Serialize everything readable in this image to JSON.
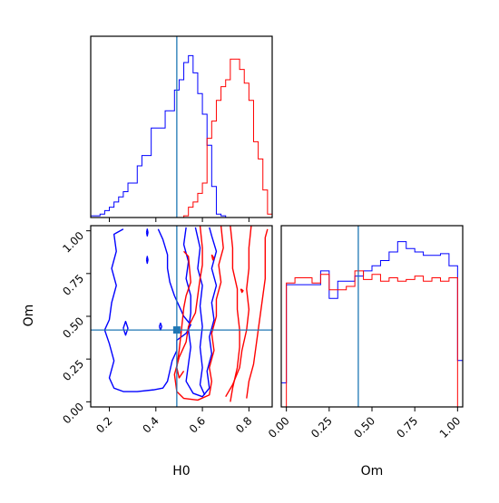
{
  "chart_data": {
    "type": "corner",
    "colors": {
      "series_a": "#0000ff",
      "series_b": "#ff0000",
      "truth": "#1f77b4",
      "frame": "#000000"
    },
    "truth": {
      "H0": 0.49,
      "Om": 0.42
    },
    "axes": {
      "H0": {
        "label": "H0",
        "lim": [
          0.12,
          0.9
        ],
        "ticks": [
          "0.2",
          "0.4",
          "0.6",
          "0.8"
        ],
        "tick_values": [
          0.2,
          0.4,
          0.6,
          0.8
        ]
      },
      "Om": {
        "label": "Om",
        "lim": [
          -0.03,
          1.03
        ],
        "ticks": [
          "0.00",
          "0.25",
          "0.50",
          "0.75",
          "1.00"
        ],
        "tick_values": [
          0.0,
          0.25,
          0.5,
          0.75,
          1.0
        ]
      }
    },
    "hist_H0": {
      "bin_edges": [
        0.12,
        0.14,
        0.16,
        0.18,
        0.2,
        0.22,
        0.24,
        0.26,
        0.28,
        0.3,
        0.32,
        0.34,
        0.36,
        0.38,
        0.4,
        0.42,
        0.44,
        0.46,
        0.48,
        0.5,
        0.52,
        0.54,
        0.56,
        0.58,
        0.6,
        0.62,
        0.64,
        0.66,
        0.68,
        0.7,
        0.72,
        0.74,
        0.76,
        0.78,
        0.8,
        0.82,
        0.84,
        0.86,
        0.88,
        0.9
      ],
      "series_a": [
        0.01,
        0.01,
        0.02,
        0.04,
        0.06,
        0.09,
        0.12,
        0.15,
        0.2,
        0.2,
        0.3,
        0.36,
        0.36,
        0.52,
        0.52,
        0.52,
        0.62,
        0.62,
        0.74,
        0.8,
        0.9,
        0.94,
        0.84,
        0.72,
        0.6,
        0.42,
        0.18,
        0.02,
        0.01,
        0.0,
        0.0,
        0.0,
        0.0,
        0.0,
        0.0,
        0.0,
        0.0,
        0.0,
        0.0
      ],
      "series_b": [
        0.0,
        0.0,
        0.0,
        0.0,
        0.0,
        0.0,
        0.0,
        0.0,
        0.0,
        0.0,
        0.0,
        0.0,
        0.0,
        0.0,
        0.0,
        0.0,
        0.0,
        0.0,
        0.0,
        0.0,
        0.01,
        0.06,
        0.09,
        0.14,
        0.2,
        0.46,
        0.56,
        0.68,
        0.76,
        0.8,
        0.92,
        0.92,
        0.86,
        0.78,
        0.68,
        0.44,
        0.34,
        0.16,
        0.02
      ]
    },
    "hist_Om": {
      "bin_edges": [
        -0.03,
        0.0,
        0.05,
        0.1,
        0.15,
        0.2,
        0.25,
        0.3,
        0.35,
        0.4,
        0.45,
        0.5,
        0.55,
        0.6,
        0.65,
        0.7,
        0.75,
        0.8,
        0.85,
        0.9,
        0.95,
        1.0,
        1.03
      ],
      "series_a": [
        0.14,
        0.71,
        0.71,
        0.71,
        0.71,
        0.79,
        0.63,
        0.73,
        0.73,
        0.76,
        0.79,
        0.82,
        0.85,
        0.9,
        0.96,
        0.92,
        0.9,
        0.88,
        0.88,
        0.89,
        0.82,
        0.27
      ],
      "series_b": [
        0.0,
        0.72,
        0.75,
        0.75,
        0.72,
        0.77,
        0.68,
        0.68,
        0.7,
        0.79,
        0.74,
        0.77,
        0.73,
        0.75,
        0.73,
        0.74,
        0.76,
        0.73,
        0.75,
        0.73,
        0.75,
        0.0
      ]
    },
    "contours": {
      "series_a": [
        [
          [
            0.26,
            1.01
          ],
          [
            0.22,
            0.98
          ],
          [
            0.23,
            0.88
          ],
          [
            0.21,
            0.78
          ],
          [
            0.23,
            0.68
          ],
          [
            0.21,
            0.58
          ],
          [
            0.2,
            0.48
          ],
          [
            0.18,
            0.42
          ],
          [
            0.2,
            0.34
          ],
          [
            0.22,
            0.24
          ],
          [
            0.2,
            0.14
          ],
          [
            0.22,
            0.08
          ],
          [
            0.26,
            0.06
          ],
          [
            0.32,
            0.06
          ],
          [
            0.39,
            0.07
          ],
          [
            0.43,
            0.08
          ],
          [
            0.45,
            0.12
          ],
          [
            0.46,
            0.18
          ],
          [
            0.47,
            0.24
          ],
          [
            0.49,
            0.3
          ],
          [
            0.49,
            0.36
          ],
          [
            0.53,
            0.4
          ],
          [
            0.55,
            0.45
          ],
          [
            0.52,
            0.5
          ],
          [
            0.5,
            0.56
          ],
          [
            0.48,
            0.62
          ],
          [
            0.46,
            0.7
          ],
          [
            0.45,
            0.78
          ],
          [
            0.45,
            0.86
          ],
          [
            0.43,
            0.95
          ],
          [
            0.41,
            1.01
          ]
        ],
        [
          [
            0.53,
            1.02
          ],
          [
            0.52,
            0.92
          ],
          [
            0.54,
            0.82
          ],
          [
            0.53,
            0.72
          ],
          [
            0.55,
            0.62
          ],
          [
            0.55,
            0.52
          ],
          [
            0.54,
            0.42
          ],
          [
            0.55,
            0.32
          ],
          [
            0.54,
            0.22
          ],
          [
            0.53,
            0.12
          ],
          [
            0.56,
            0.05
          ],
          [
            0.6,
            0.03
          ],
          [
            0.63,
            0.08
          ],
          [
            0.62,
            0.18
          ],
          [
            0.64,
            0.28
          ],
          [
            0.63,
            0.38
          ],
          [
            0.65,
            0.48
          ],
          [
            0.64,
            0.58
          ],
          [
            0.66,
            0.68
          ],
          [
            0.64,
            0.78
          ],
          [
            0.66,
            0.88
          ],
          [
            0.64,
            0.97
          ],
          [
            0.63,
            1.02
          ]
        ],
        [
          [
            0.57,
            1.02
          ],
          [
            0.59,
            0.9
          ],
          [
            0.58,
            0.78
          ],
          [
            0.6,
            0.68
          ],
          [
            0.59,
            0.56
          ],
          [
            0.6,
            0.44
          ],
          [
            0.59,
            0.32
          ],
          [
            0.6,
            0.2
          ],
          [
            0.59,
            0.1
          ],
          [
            0.61,
            0.04
          ]
        ],
        [
          [
            0.26,
            0.43
          ],
          [
            0.27,
            0.39
          ],
          [
            0.28,
            0.43
          ],
          [
            0.27,
            0.47
          ],
          [
            0.26,
            0.43
          ]
        ],
        [
          [
            0.36,
            0.83
          ],
          [
            0.363,
            0.81
          ],
          [
            0.366,
            0.83
          ],
          [
            0.363,
            0.85
          ],
          [
            0.36,
            0.83
          ]
        ],
        [
          [
            0.36,
            0.99
          ],
          [
            0.363,
            0.97
          ],
          [
            0.366,
            0.99
          ],
          [
            0.363,
            1.01
          ],
          [
            0.36,
            0.99
          ]
        ],
        [
          [
            0.415,
            0.44
          ],
          [
            0.42,
            0.42
          ],
          [
            0.425,
            0.44
          ],
          [
            0.42,
            0.46
          ],
          [
            0.415,
            0.44
          ]
        ]
      ],
      "series_b": [
        [
          [
            0.59,
            1.03
          ],
          [
            0.6,
            0.9
          ],
          [
            0.6,
            0.8
          ],
          [
            0.59,
            0.72
          ],
          [
            0.58,
            0.62
          ],
          [
            0.57,
            0.52
          ],
          [
            0.54,
            0.44
          ],
          [
            0.53,
            0.35
          ],
          [
            0.5,
            0.26
          ],
          [
            0.48,
            0.16
          ],
          [
            0.49,
            0.06
          ],
          [
            0.52,
            0.02
          ],
          [
            0.58,
            0.01
          ],
          [
            0.63,
            0.04
          ],
          [
            0.64,
            0.12
          ],
          [
            0.63,
            0.2
          ],
          [
            0.65,
            0.3
          ],
          [
            0.64,
            0.4
          ],
          [
            0.66,
            0.5
          ],
          [
            0.66,
            0.6
          ],
          [
            0.68,
            0.7
          ],
          [
            0.67,
            0.8
          ],
          [
            0.69,
            0.9
          ],
          [
            0.68,
            1.03
          ]
        ],
        [
          [
            0.52,
            0.88
          ],
          [
            0.54,
            0.85
          ],
          [
            0.55,
            0.7
          ],
          [
            0.53,
            0.62
          ],
          [
            0.52,
            0.55
          ],
          [
            0.51,
            0.42
          ],
          [
            0.5,
            0.3
          ],
          [
            0.49,
            0.2
          ],
          [
            0.5,
            0.14
          ],
          [
            0.52,
            0.18
          ]
        ],
        [
          [
            0.72,
            1.03
          ],
          [
            0.73,
            0.9
          ],
          [
            0.73,
            0.78
          ],
          [
            0.75,
            0.66
          ],
          [
            0.75,
            0.54
          ],
          [
            0.76,
            0.42
          ],
          [
            0.76,
            0.32
          ],
          [
            0.75,
            0.2
          ],
          [
            0.73,
            0.08
          ],
          [
            0.72,
            0.0
          ]
        ],
        [
          [
            0.81,
            1.03
          ],
          [
            0.8,
            0.9
          ],
          [
            0.8,
            0.78
          ],
          [
            0.79,
            0.66
          ],
          [
            0.8,
            0.54
          ],
          [
            0.79,
            0.42
          ],
          [
            0.77,
            0.3
          ],
          [
            0.76,
            0.2
          ],
          [
            0.73,
            0.1
          ],
          [
            0.7,
            0.03
          ]
        ],
        [
          [
            0.88,
            1.01
          ],
          [
            0.87,
            0.96
          ],
          [
            0.87,
            0.84
          ],
          [
            0.87,
            0.72
          ],
          [
            0.86,
            0.62
          ],
          [
            0.85,
            0.52
          ],
          [
            0.84,
            0.42
          ],
          [
            0.83,
            0.32
          ],
          [
            0.82,
            0.22
          ],
          [
            0.8,
            0.12
          ],
          [
            0.79,
            0.02
          ]
        ],
        [
          [
            0.64,
            0.86
          ],
          [
            0.65,
            0.84
          ],
          [
            0.645,
            0.83
          ],
          [
            0.64,
            0.86
          ]
        ],
        [
          [
            0.765,
            0.66
          ],
          [
            0.775,
            0.65
          ],
          [
            0.77,
            0.64
          ],
          [
            0.765,
            0.66
          ]
        ]
      ]
    }
  }
}
